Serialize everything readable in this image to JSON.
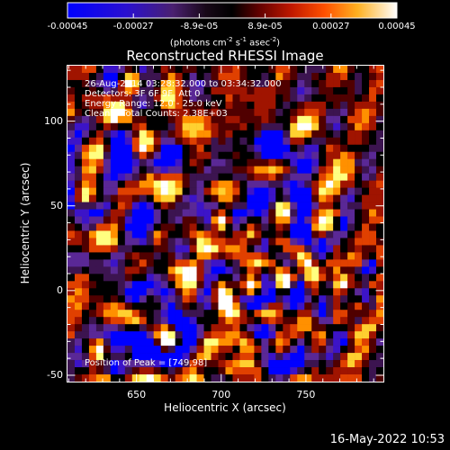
{
  "chart_data": {
    "type": "heatmap",
    "title": "Reconstructed RHESSI Image",
    "xlabel": "Heliocentric X (arcsec)",
    "ylabel": "Heliocentric Y (arcsec)",
    "xlim": [
      609,
      796
    ],
    "ylim": [
      -54,
      133
    ],
    "x_ticks": [
      650,
      700,
      750
    ],
    "y_ticks": [
      -50,
      0,
      50,
      100
    ],
    "colorbar": {
      "range": [
        -0.00045,
        0.00045
      ],
      "tick_labels": [
        "-0.00045",
        "-0.00027",
        "-8.9e-05",
        "8.9e-05",
        "0.00027",
        "0.00045"
      ],
      "unit_main": "(photons cm",
      "unit_exp1": "-2",
      "unit_mid": " s",
      "unit_exp2": "-1",
      "unit_end": " asec",
      "unit_exp3": "-2",
      "unit_close": ")"
    },
    "grid": false,
    "colormap": [
      "#0000ff",
      "#3c14c8",
      "#5a2896",
      "#3c1450",
      "#000000",
      "#500000",
      "#a01400",
      "#e04000",
      "#ff9000",
      "#ffd030",
      "#ffff80",
      "#ffffff"
    ],
    "peak_x": 749,
    "peak_y": 98
  },
  "annotations": {
    "line1": "26-Aug-2014 03:28:32.000 to 03:34:32.000",
    "line2": "Detectors: 3F 6F 9F  Att 0",
    "line3": "Energy Range: 12.0 - 25.0 keV",
    "line4": "Clean    Total Counts: 2.38E+03",
    "peak": "Position of Peak = [749,98]"
  },
  "timestamp": "16-May-2022 10:53"
}
